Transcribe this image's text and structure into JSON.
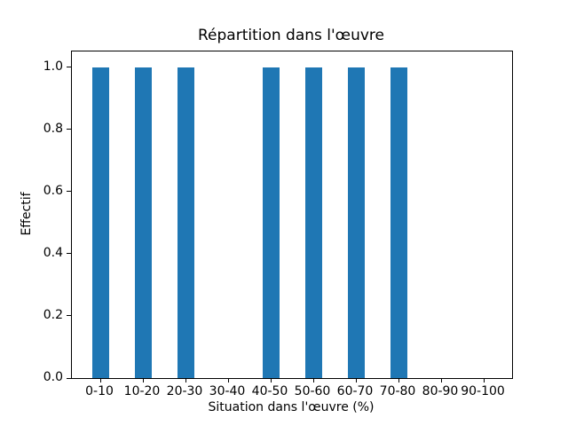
{
  "chart_data": {
    "type": "bar",
    "title": "Répartition dans l'œuvre",
    "xlabel": "Situation dans l'œuvre (%)",
    "ylabel": "Effectif",
    "categories": [
      "0-10",
      "10-20",
      "20-30",
      "30-40",
      "40-50",
      "50-60",
      "60-70",
      "70-80",
      "80-90",
      "90-100"
    ],
    "values": [
      1,
      1,
      1,
      0,
      1,
      1,
      1,
      1,
      0,
      0
    ],
    "ytick_labels": [
      "0.0",
      "0.2",
      "0.4",
      "0.6",
      "0.8",
      "1.0"
    ],
    "ytick_values": [
      0.0,
      0.2,
      0.4,
      0.6,
      0.8,
      1.0
    ],
    "ylim": [
      0,
      1.05
    ],
    "bar_color": "#1f77b4",
    "spine_color": "#000000",
    "background_color": "#ffffff",
    "grid": false,
    "legend": "none"
  }
}
